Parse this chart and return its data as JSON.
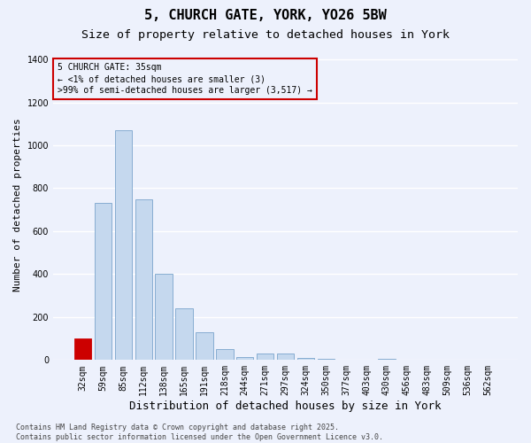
{
  "title1": "5, CHURCH GATE, YORK, YO26 5BW",
  "title2": "Size of property relative to detached houses in York",
  "xlabel": "Distribution of detached houses by size in York",
  "ylabel": "Number of detached properties",
  "categories": [
    "32sqm",
    "59sqm",
    "85sqm",
    "112sqm",
    "138sqm",
    "165sqm",
    "191sqm",
    "218sqm",
    "244sqm",
    "271sqm",
    "297sqm",
    "324sqm",
    "350sqm",
    "377sqm",
    "403sqm",
    "430sqm",
    "456sqm",
    "483sqm",
    "509sqm",
    "536sqm",
    "562sqm"
  ],
  "values": [
    100,
    730,
    1070,
    750,
    400,
    240,
    130,
    50,
    15,
    30,
    30,
    10,
    5,
    0,
    0,
    5,
    0,
    0,
    0,
    0,
    0
  ],
  "bar_color": "#c5d8ee",
  "bar_edge_color": "#7aa4cc",
  "highlight_bar_index": 0,
  "highlight_color": "#cc0000",
  "annotation_box_text": "5 CHURCH GATE: 35sqm\n← <1% of detached houses are smaller (3)\n>99% of semi-detached houses are larger (3,517) →",
  "annotation_box_color": "#cc0000",
  "ylim": [
    0,
    1450
  ],
  "yticks": [
    0,
    200,
    400,
    600,
    800,
    1000,
    1200,
    1400
  ],
  "bg_color": "#edf1fc",
  "grid_color": "#ffffff",
  "footer": "Contains HM Land Registry data © Crown copyright and database right 2025.\nContains public sector information licensed under the Open Government Licence v3.0.",
  "title_fontsize": 11,
  "subtitle_fontsize": 9.5,
  "xlabel_fontsize": 9,
  "ylabel_fontsize": 8,
  "tick_fontsize": 7,
  "ann_fontsize": 7,
  "footer_fontsize": 6
}
